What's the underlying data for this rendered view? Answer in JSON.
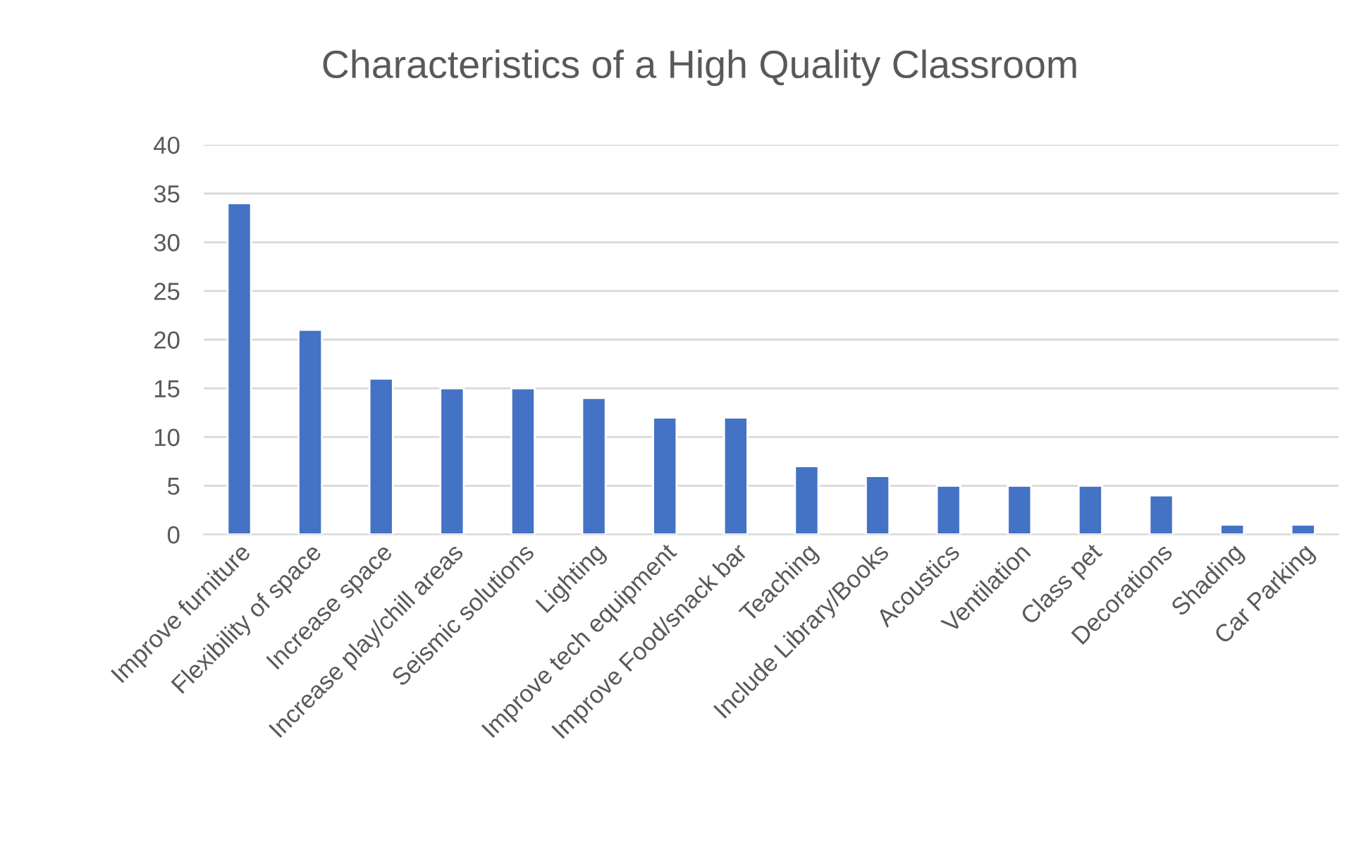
{
  "chart_data": {
    "type": "bar",
    "title": "Characteristics of a High Quality Classroom",
    "categories": [
      "Improve furniture",
      "Flexibility of space",
      "Increase space",
      "Increase play/chill areas",
      "Seismic solutions",
      "Lighting",
      "Improve tech equipment",
      "Improve Food/snack bar",
      "Teaching",
      "Include Library/Books",
      "Acoustics",
      "Ventilation",
      "Class pet",
      "Decorations",
      "Shading",
      "Car Parking"
    ],
    "values": [
      34,
      21,
      16,
      15,
      15,
      14,
      12,
      12,
      7,
      6,
      5,
      5,
      5,
      4,
      1,
      1
    ],
    "color": "#4472c4",
    "ylim": [
      0,
      40
    ],
    "yticks": [
      0,
      5,
      10,
      15,
      20,
      25,
      30,
      35,
      40
    ],
    "grid": "y"
  }
}
